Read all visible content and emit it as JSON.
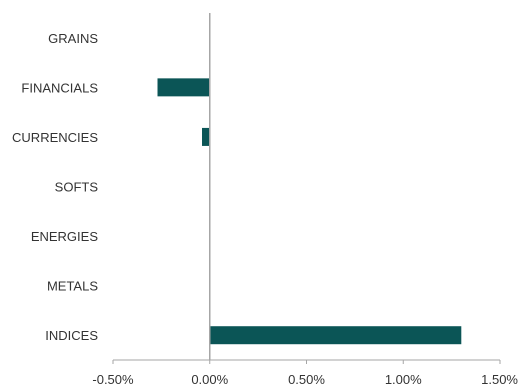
{
  "chart_data": {
    "type": "bar",
    "orientation": "horizontal",
    "categories": [
      "GRAINS",
      "FINANCIALS",
      "CURRENCIES",
      "SOFTS",
      "ENERGIES",
      "METALS",
      "INDICES"
    ],
    "values": [
      0.0,
      -0.27,
      -0.04,
      0.0,
      0.0,
      0.0,
      1.3
    ],
    "title": "",
    "xlabel": "",
    "ylabel": "",
    "xlim": [
      -0.5,
      1.5
    ],
    "ticks": [
      -0.5,
      0.0,
      0.5,
      1.0,
      1.5
    ],
    "tick_labels": [
      "-0.50%",
      "0.00%",
      "0.50%",
      "1.00%",
      "1.50%"
    ],
    "grid": false,
    "legend": "none",
    "bar_color": "#0b5556",
    "axis_color": "#a6a6a6",
    "text_color": "#333333"
  }
}
